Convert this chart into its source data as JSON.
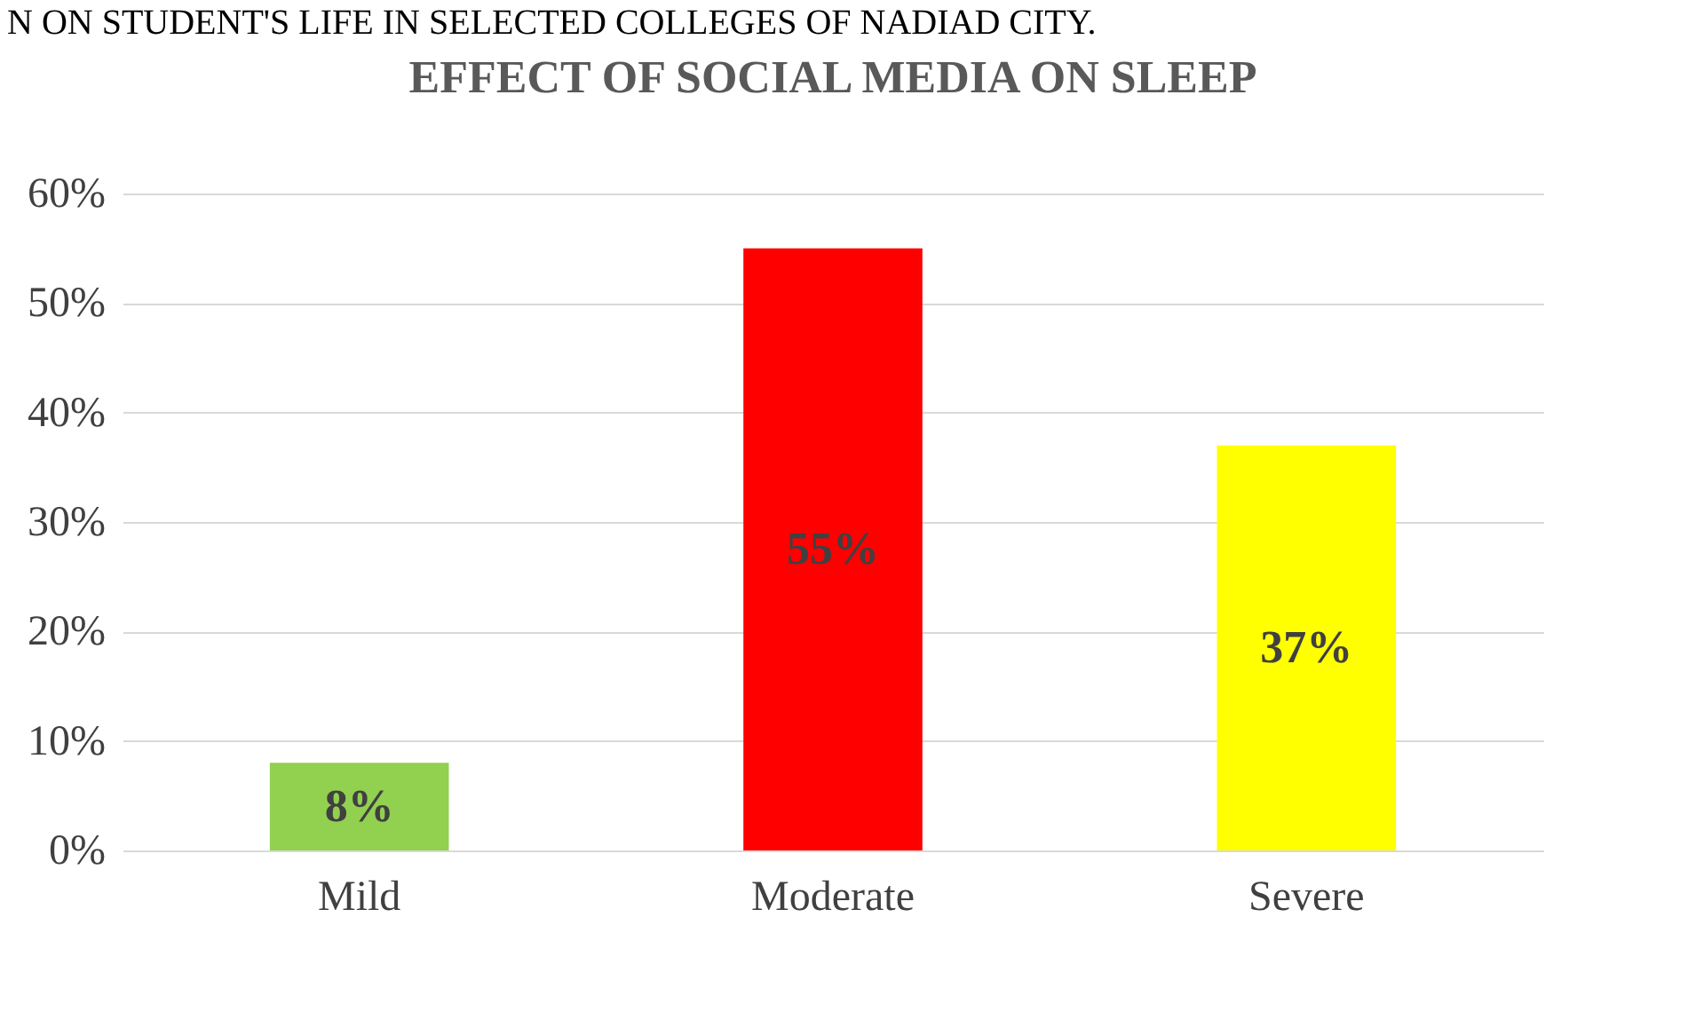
{
  "chart_data": {
    "type": "bar",
    "title": "EFFECT OF SOCIAL MEDIA ON SLEEP",
    "annotations": [
      "N ON STUDENT'S LIFE IN SELECTED COLLEGES OF NADIAD CITY."
    ],
    "categories": [
      "Mild",
      "Moderate",
      "Severe"
    ],
    "values": [
      8,
      55,
      37
    ],
    "colors": [
      "#92d050",
      "#ff0000",
      "#ffff00"
    ],
    "value_labels": [
      "8%",
      "55%",
      "37%"
    ],
    "ylim": [
      0,
      60
    ],
    "yticks": [
      {
        "value": 0,
        "label": "0%"
      },
      {
        "value": 10,
        "label": "10%"
      },
      {
        "value": 20,
        "label": "20%"
      },
      {
        "value": 30,
        "label": "30%"
      },
      {
        "value": 40,
        "label": "40%"
      },
      {
        "value": 50,
        "label": "50%"
      },
      {
        "value": 60,
        "label": "60%"
      }
    ],
    "grid": "y"
  }
}
